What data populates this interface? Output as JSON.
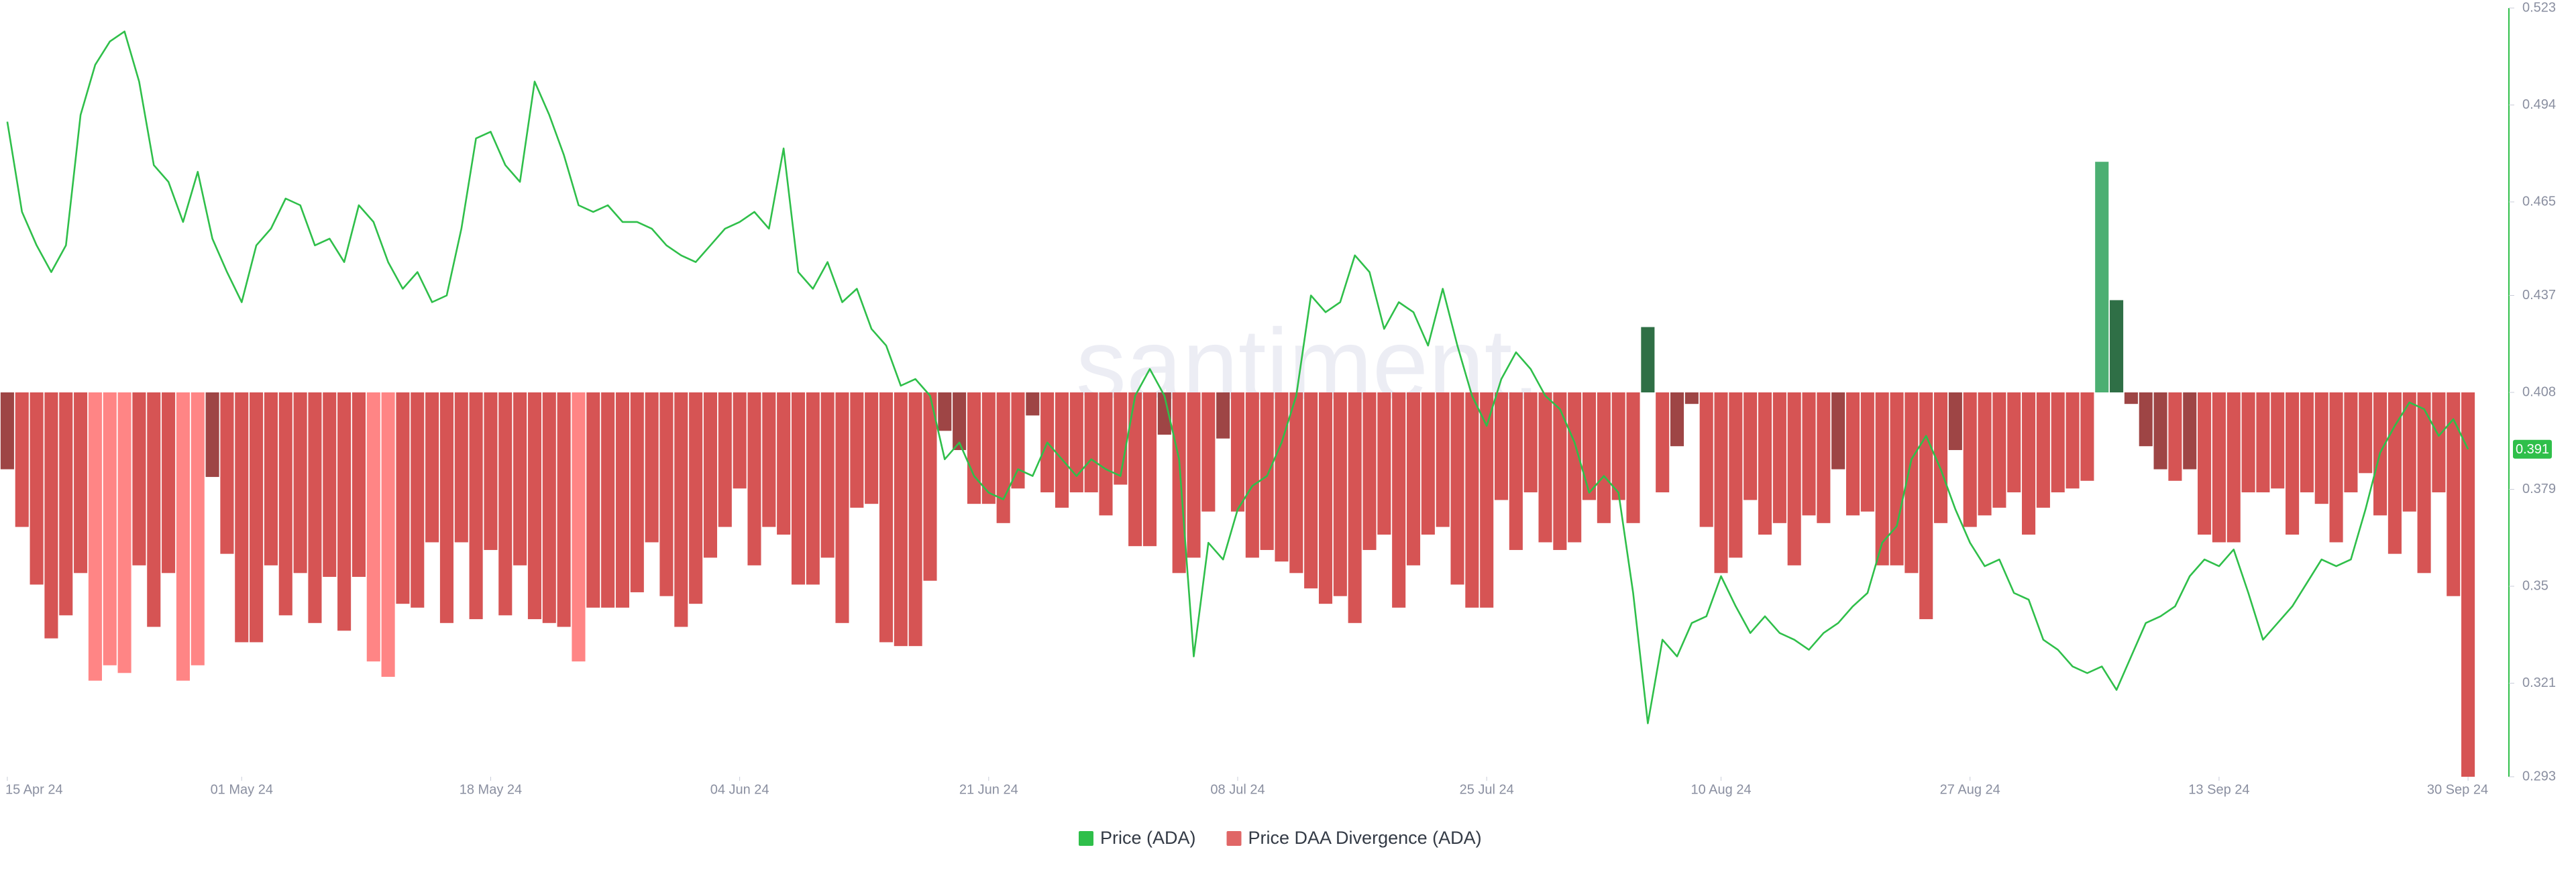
{
  "chart_data": {
    "type": "bar-line",
    "watermark": "santiment.",
    "x": [
      "2024-04-15",
      "2024-04-16",
      "2024-04-17",
      "2024-04-18",
      "2024-04-19",
      "2024-04-20",
      "2024-04-21",
      "2024-04-22",
      "2024-04-23",
      "2024-04-24",
      "2024-04-25",
      "2024-04-26",
      "2024-04-27",
      "2024-04-28",
      "2024-04-29",
      "2024-04-30",
      "2024-05-01",
      "2024-05-02",
      "2024-05-03",
      "2024-05-04",
      "2024-05-05",
      "2024-05-06",
      "2024-05-07",
      "2024-05-08",
      "2024-05-09",
      "2024-05-10",
      "2024-05-11",
      "2024-05-12",
      "2024-05-13",
      "2024-05-14",
      "2024-05-15",
      "2024-05-16",
      "2024-05-17",
      "2024-05-18",
      "2024-05-19",
      "2024-05-20",
      "2024-05-21",
      "2024-05-22",
      "2024-05-23",
      "2024-05-24",
      "2024-05-25",
      "2024-05-26",
      "2024-05-27",
      "2024-05-28",
      "2024-05-29",
      "2024-05-30",
      "2024-05-31",
      "2024-06-01",
      "2024-06-02",
      "2024-06-03",
      "2024-06-04",
      "2024-06-05",
      "2024-06-06",
      "2024-06-07",
      "2024-06-08",
      "2024-06-09",
      "2024-06-10",
      "2024-06-11",
      "2024-06-12",
      "2024-06-13",
      "2024-06-14",
      "2024-06-15",
      "2024-06-16",
      "2024-06-17",
      "2024-06-18",
      "2024-06-19",
      "2024-06-20",
      "2024-06-21",
      "2024-06-22",
      "2024-06-23",
      "2024-06-24",
      "2024-06-25",
      "2024-06-26",
      "2024-06-27",
      "2024-06-28",
      "2024-06-29",
      "2024-06-30",
      "2024-07-01",
      "2024-07-02",
      "2024-07-03",
      "2024-07-04",
      "2024-07-05",
      "2024-07-06",
      "2024-07-07",
      "2024-07-08",
      "2024-07-09",
      "2024-07-10",
      "2024-07-11",
      "2024-07-12",
      "2024-07-13",
      "2024-07-14",
      "2024-07-15",
      "2024-07-16",
      "2024-07-17",
      "2024-07-18",
      "2024-07-19",
      "2024-07-20",
      "2024-07-21",
      "2024-07-22",
      "2024-07-23",
      "2024-07-24",
      "2024-07-25",
      "2024-07-26",
      "2024-07-27",
      "2024-07-28",
      "2024-07-29",
      "2024-07-30",
      "2024-07-31",
      "2024-08-01",
      "2024-08-02",
      "2024-08-03",
      "2024-08-04",
      "2024-08-05",
      "2024-08-06",
      "2024-08-07",
      "2024-08-08",
      "2024-08-09",
      "2024-08-10",
      "2024-08-11",
      "2024-08-12",
      "2024-08-13",
      "2024-08-14",
      "2024-08-15",
      "2024-08-16",
      "2024-08-17",
      "2024-08-18",
      "2024-08-19",
      "2024-08-20",
      "2024-08-21",
      "2024-08-22",
      "2024-08-23",
      "2024-08-24",
      "2024-08-25",
      "2024-08-26",
      "2024-08-27",
      "2024-08-28",
      "2024-08-29",
      "2024-08-30",
      "2024-08-31",
      "2024-09-01",
      "2024-09-02",
      "2024-09-03",
      "2024-09-04",
      "2024-09-05",
      "2024-09-06",
      "2024-09-07",
      "2024-09-08",
      "2024-09-09",
      "2024-09-10",
      "2024-09-11",
      "2024-09-12",
      "2024-09-13",
      "2024-09-14",
      "2024-09-15",
      "2024-09-16",
      "2024-09-17",
      "2024-09-18",
      "2024-09-19",
      "2024-09-20",
      "2024-09-21",
      "2024-09-22",
      "2024-09-23",
      "2024-09-24",
      "2024-09-25",
      "2024-09-26",
      "2024-09-27",
      "2024-09-28",
      "2024-09-29",
      "2024-09-30"
    ],
    "xlim": [
      "2024-04-15",
      "2024-09-30"
    ],
    "xticks": [
      {
        "value": "2024-04-15",
        "label": "15 Apr 24"
      },
      {
        "value": "2024-05-01",
        "label": "01 May 24"
      },
      {
        "value": "2024-05-18",
        "label": "18 May 24"
      },
      {
        "value": "2024-06-04",
        "label": "04 Jun 24"
      },
      {
        "value": "2024-06-21",
        "label": "21 Jun 24"
      },
      {
        "value": "2024-07-08",
        "label": "08 Jul 24"
      },
      {
        "value": "2024-07-25",
        "label": "25 Jul 24"
      },
      {
        "value": "2024-08-10",
        "label": "10 Aug 24"
      },
      {
        "value": "2024-08-27",
        "label": "27 Aug 24"
      },
      {
        "value": "2024-09-13",
        "label": "13 Sep 24"
      },
      {
        "value": "2024-09-30",
        "label": "30 Sep 24"
      }
    ],
    "ylim": [
      0.293,
      0.523
    ],
    "yticks": [
      0.523,
      0.494,
      0.465,
      0.437,
      0.408,
      0.379,
      0.35,
      0.321,
      0.293
    ],
    "y2lim": [
      -1,
      1
    ],
    "series": [
      {
        "name": "Price (ADA)",
        "type": "line",
        "color": "#2fbf4a",
        "values": [
          0.489,
          0.462,
          0.452,
          0.444,
          0.452,
          0.491,
          0.506,
          0.513,
          0.516,
          0.501,
          0.476,
          0.471,
          0.459,
          0.474,
          0.454,
          0.444,
          0.435,
          0.452,
          0.457,
          0.466,
          0.464,
          0.452,
          0.454,
          0.447,
          0.464,
          0.459,
          0.447,
          0.439,
          0.444,
          0.435,
          0.437,
          0.457,
          0.484,
          0.486,
          0.476,
          0.471,
          0.501,
          0.491,
          0.479,
          0.464,
          0.462,
          0.464,
          0.459,
          0.459,
          0.457,
          0.452,
          0.449,
          0.447,
          0.452,
          0.457,
          0.459,
          0.462,
          0.457,
          0.481,
          0.444,
          0.439,
          0.447,
          0.435,
          0.439,
          0.427,
          0.422,
          0.41,
          0.412,
          0.407,
          0.388,
          0.393,
          0.383,
          0.378,
          0.376,
          0.385,
          0.383,
          0.393,
          0.388,
          0.383,
          0.388,
          0.385,
          0.383,
          0.407,
          0.415,
          0.407,
          0.388,
          0.329,
          0.363,
          0.358,
          0.373,
          0.38,
          0.383,
          0.393,
          0.407,
          0.437,
          0.432,
          0.435,
          0.449,
          0.444,
          0.427,
          0.435,
          0.432,
          0.422,
          0.439,
          0.422,
          0.407,
          0.398,
          0.412,
          0.42,
          0.415,
          0.407,
          0.403,
          0.393,
          0.378,
          0.383,
          0.378,
          0.348,
          0.309,
          0.334,
          0.329,
          0.339,
          0.341,
          0.353,
          0.344,
          0.336,
          0.341,
          0.336,
          0.334,
          0.331,
          0.336,
          0.339,
          0.344,
          0.348,
          0.363,
          0.368,
          0.388,
          0.395,
          0.385,
          0.373,
          0.363,
          0.356,
          0.358,
          0.348,
          0.346,
          0.334,
          0.331,
          0.326,
          0.324,
          0.326,
          0.319,
          0.329,
          0.339,
          0.341,
          0.344,
          0.353,
          0.358,
          0.356,
          0.361,
          0.348,
          0.334,
          0.339,
          0.344,
          0.351,
          0.358,
          0.356,
          0.358,
          0.373,
          0.39,
          0.398,
          0.405,
          0.403,
          0.395,
          0.4,
          0.391
        ]
      },
      {
        "name": "Price DAA Divergence (ADA)",
        "type": "bar",
        "axis": "y2",
        "color": "#e06666",
        "values": [
          -0.2,
          -0.35,
          -0.5,
          -0.64,
          -0.58,
          -0.47,
          -0.75,
          -0.71,
          -0.73,
          -0.45,
          -0.61,
          -0.47,
          -0.75,
          -0.71,
          -0.22,
          -0.42,
          -0.65,
          -0.65,
          -0.45,
          -0.58,
          -0.47,
          -0.6,
          -0.48,
          -0.62,
          -0.48,
          -0.7,
          -0.74,
          -0.55,
          -0.56,
          -0.39,
          -0.6,
          -0.39,
          -0.59,
          -0.41,
          -0.58,
          -0.45,
          -0.59,
          -0.6,
          -0.61,
          -0.7,
          -0.56,
          -0.56,
          -0.56,
          -0.52,
          -0.39,
          -0.53,
          -0.61,
          -0.55,
          -0.43,
          -0.35,
          -0.25,
          -0.45,
          -0.35,
          -0.37,
          -0.5,
          -0.5,
          -0.43,
          -0.6,
          -0.3,
          -0.29,
          -0.65,
          -0.66,
          -0.66,
          -0.49,
          -0.1,
          -0.15,
          -0.29,
          -0.29,
          -0.34,
          -0.25,
          -0.06,
          -0.26,
          -0.3,
          -0.26,
          -0.26,
          -0.32,
          -0.24,
          -0.4,
          -0.4,
          -0.11,
          -0.47,
          -0.43,
          -0.31,
          -0.12,
          -0.31,
          -0.43,
          -0.41,
          -0.44,
          -0.47,
          -0.51,
          -0.55,
          -0.53,
          -0.6,
          -0.41,
          -0.37,
          -0.56,
          -0.45,
          -0.37,
          -0.35,
          -0.5,
          -0.56,
          -0.56,
          -0.28,
          -0.41,
          -0.26,
          -0.39,
          -0.41,
          -0.39,
          -0.28,
          -0.34,
          -0.28,
          -0.34,
          0.17,
          -0.26,
          -0.14,
          -0.03,
          -0.35,
          -0.47,
          -0.43,
          -0.28,
          -0.37,
          -0.34,
          -0.45,
          -0.32,
          -0.34,
          -0.2,
          -0.32,
          -0.31,
          -0.45,
          -0.45,
          -0.47,
          -0.59,
          -0.34,
          -0.15,
          -0.35,
          -0.32,
          -0.3,
          -0.26,
          -0.37,
          -0.3,
          -0.26,
          -0.25,
          -0.23,
          0.6,
          0.24,
          -0.03,
          -0.14,
          -0.2,
          -0.23,
          -0.2,
          -0.37,
          -0.39,
          -0.39,
          -0.26,
          -0.26,
          -0.25,
          -0.37,
          -0.26,
          -0.29,
          -0.39,
          -0.26,
          -0.21,
          -0.32,
          -0.42,
          -0.31,
          -0.47,
          -0.26,
          -0.53,
          -1.0
        ],
        "colors": [
          "#9e4545",
          "#d65454",
          "#d65454",
          "#d65454",
          "#d65454",
          "#d65454",
          "#ff8585",
          "#ff8585",
          "#ff8585",
          "#d65454",
          "#d65454",
          "#d65454",
          "#ff8585",
          "#ff8585",
          "#9e4545",
          "#d65454",
          "#d65454",
          "#d65454",
          "#d65454",
          "#d65454",
          "#d65454",
          "#d65454",
          "#d65454",
          "#d65454",
          "#d65454",
          "#ff8585",
          "#ff8585",
          "#d65454",
          "#d65454",
          "#d65454",
          "#d65454",
          "#d65454",
          "#d65454",
          "#d65454",
          "#d65454",
          "#d65454",
          "#d65454",
          "#d65454",
          "#d65454",
          "#ff8585",
          "#d65454",
          "#d65454",
          "#d65454",
          "#d65454",
          "#d65454",
          "#d65454",
          "#d65454",
          "#d65454",
          "#d65454",
          "#d65454",
          "#d65454",
          "#d65454",
          "#d65454",
          "#d65454",
          "#d65454",
          "#d65454",
          "#d65454",
          "#d65454",
          "#d65454",
          "#d65454",
          "#d65454",
          "#d65454",
          "#d65454",
          "#d65454",
          "#9e4545",
          "#9e4545",
          "#d65454",
          "#d65454",
          "#d65454",
          "#d65454",
          "#9e4545",
          "#d65454",
          "#d65454",
          "#d65454",
          "#d65454",
          "#d65454",
          "#d65454",
          "#d65454",
          "#d65454",
          "#9e4545",
          "#d65454",
          "#d65454",
          "#d65454",
          "#9e4545",
          "#d65454",
          "#d65454",
          "#d65454",
          "#d65454",
          "#d65454",
          "#d65454",
          "#d65454",
          "#d65454",
          "#d65454",
          "#d65454",
          "#d65454",
          "#d65454",
          "#d65454",
          "#d65454",
          "#d65454",
          "#d65454",
          "#d65454",
          "#d65454",
          "#d65454",
          "#d65454",
          "#d65454",
          "#d65454",
          "#d65454",
          "#d65454",
          "#d65454",
          "#d65454",
          "#d65454",
          "#d65454",
          "#2f6f46",
          "#d65454",
          "#9e4545",
          "#9e4545",
          "#d65454",
          "#d65454",
          "#d65454",
          "#d65454",
          "#d65454",
          "#d65454",
          "#d65454",
          "#d65454",
          "#d65454",
          "#9e4545",
          "#d65454",
          "#d65454",
          "#d65454",
          "#d65454",
          "#d65454",
          "#d65454",
          "#d65454",
          "#9e4545",
          "#d65454",
          "#d65454",
          "#d65454",
          "#d65454",
          "#d65454",
          "#d65454",
          "#d65454",
          "#d65454",
          "#d65454",
          "#4caf72",
          "#2f6f46",
          "#9e4545",
          "#9e4545",
          "#9e4545",
          "#d65454",
          "#9e4545",
          "#d65454",
          "#d65454",
          "#d65454",
          "#d65454",
          "#d65454",
          "#d65454",
          "#d65454",
          "#d65454",
          "#d65454",
          "#d65454",
          "#d65454",
          "#d65454",
          "#d65454",
          "#d65454",
          "#d65454",
          "#d65454",
          "#d65454",
          "#d65454",
          "#d65454"
        ]
      }
    ]
  }
}
